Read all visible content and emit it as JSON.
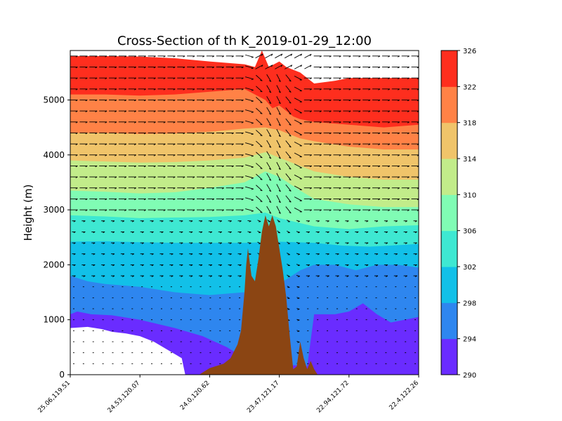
{
  "chart_data": {
    "type": "heatmap",
    "title": "Cross-Section of th K_2019-01-29_12:00",
    "xlabel": "",
    "ylabel": "Height (m)",
    "ylim": [
      0,
      5900
    ],
    "yticks": [
      0,
      1000,
      2000,
      3000,
      4000,
      5000
    ],
    "x_tick_labels": [
      "25.06,119.51",
      "24.53,120.07",
      "24.0,120.62",
      "23.47,121.17",
      "22.94,121.72",
      "22.4,122.26"
    ],
    "x_range": [
      0,
      100
    ],
    "colorbar": {
      "ticks": [
        290,
        294,
        298,
        302,
        306,
        310,
        314,
        318,
        322,
        326
      ],
      "levels": [
        290,
        294,
        298,
        302,
        306,
        310,
        314,
        318,
        322,
        326
      ],
      "colors": [
        "#6a2cff",
        "#2e86ef",
        "#12c0e8",
        "#3ee8d2",
        "#80fcb4",
        "#c2ec8a",
        "#f0c46a",
        "#ff8246",
        "#fe2e1e"
      ]
    },
    "contour_boundaries": [
      {
        "value": 294,
        "x": [
          0,
          2,
          6,
          12,
          20,
          30,
          38,
          45,
          50,
          55,
          60,
          65,
          68,
          70,
          76,
          80,
          84,
          88,
          92,
          100
        ],
        "y": [
          1100,
          1150,
          1100,
          1080,
          1000,
          850,
          700,
          500,
          300,
          200,
          180,
          170,
          150,
          1100,
          1100,
          1150,
          1300,
          1100,
          950,
          1050
        ]
      },
      {
        "value": 298,
        "x": [
          0,
          5,
          10,
          20,
          30,
          40,
          50,
          56,
          60,
          66,
          70,
          76,
          82,
          88,
          94,
          100
        ],
        "y": [
          1800,
          1700,
          1650,
          1600,
          1500,
          1450,
          1500,
          1550,
          1650,
          1900,
          2000,
          2000,
          1900,
          2000,
          2000,
          1950
        ]
      },
      {
        "value": 302,
        "x": [
          0,
          10,
          20,
          30,
          40,
          50,
          60,
          70,
          78,
          86,
          92,
          100
        ],
        "y": [
          2420,
          2430,
          2410,
          2400,
          2400,
          2400,
          2420,
          2400,
          2350,
          2330,
          2350,
          2380
        ]
      },
      {
        "value": 306,
        "x": [
          0,
          10,
          20,
          30,
          40,
          50,
          56,
          60,
          70,
          80,
          90,
          100
        ],
        "y": [
          2900,
          2880,
          2850,
          2860,
          2870,
          2900,
          2950,
          2850,
          2700,
          2650,
          2700,
          2720
        ]
      },
      {
        "value": 310,
        "x": [
          0,
          10,
          20,
          30,
          40,
          50,
          56,
          60,
          66,
          70,
          80,
          90,
          100
        ],
        "y": [
          3350,
          3330,
          3300,
          3320,
          3400,
          3500,
          3700,
          3600,
          3350,
          3200,
          3100,
          3050,
          3050
        ]
      },
      {
        "value": 314,
        "x": [
          0,
          10,
          20,
          30,
          40,
          50,
          56,
          60,
          66,
          70,
          80,
          90,
          100
        ],
        "y": [
          3900,
          3880,
          3860,
          3870,
          3900,
          3950,
          4050,
          3950,
          3800,
          3700,
          3600,
          3550,
          3550
        ]
      },
      {
        "value": 318,
        "x": [
          0,
          10,
          20,
          30,
          40,
          50,
          56,
          60,
          66,
          70,
          80,
          90,
          100
        ],
        "y": [
          4400,
          4400,
          4380,
          4390,
          4420,
          4480,
          4500,
          4450,
          4300,
          4250,
          4150,
          4100,
          4100
        ]
      },
      {
        "value": 322,
        "x": [
          0,
          10,
          20,
          30,
          40,
          50,
          56,
          58,
          60,
          64,
          66,
          70,
          80,
          90,
          100
        ],
        "y": [
          5100,
          5100,
          5080,
          5100,
          5150,
          5200,
          5000,
          4850,
          4900,
          4700,
          4650,
          4600,
          4550,
          4500,
          4550
        ]
      },
      {
        "value": 326,
        "x": [
          0,
          10,
          20,
          30,
          40,
          50,
          53,
          55,
          57,
          60,
          62,
          66,
          70,
          76,
          80,
          90,
          100
        ],
        "y": [
          5800,
          5800,
          5790,
          5760,
          5700,
          5650,
          5600,
          5900,
          5600,
          5700,
          5600,
          5500,
          5300,
          5350,
          5400,
          5400,
          5400
        ]
      }
    ],
    "terrain": {
      "color": "#8b4513",
      "x": [
        37,
        40,
        44,
        46,
        48,
        49,
        50,
        50.5,
        51,
        52,
        53,
        54,
        55,
        56,
        57,
        58,
        59,
        60,
        61,
        62,
        63,
        64,
        65,
        66,
        67,
        68,
        69,
        70,
        71
      ],
      "y": [
        0,
        120,
        200,
        300,
        550,
        800,
        1500,
        2000,
        2300,
        1800,
        1700,
        2100,
        2600,
        2900,
        2700,
        2900,
        2700,
        2300,
        1900,
        1400,
        700,
        100,
        150,
        600,
        300,
        100,
        250,
        100,
        0
      ]
    },
    "missing_region": {
      "x": [
        0,
        5,
        9,
        12,
        16,
        20,
        24,
        28,
        32,
        33,
        0
      ],
      "y": [
        850,
        870,
        830,
        780,
        750,
        700,
        600,
        450,
        300,
        0,
        0
      ]
    }
  }
}
